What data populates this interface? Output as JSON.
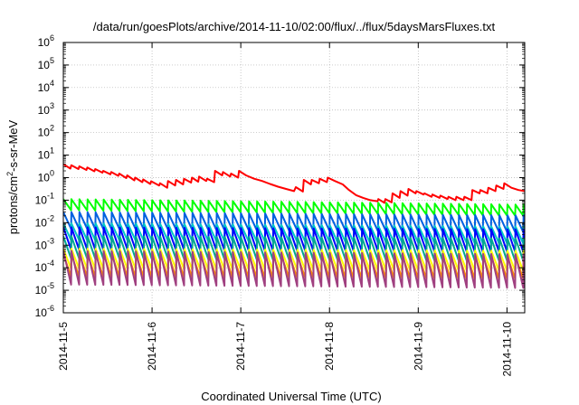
{
  "chart_data": {
    "type": "line",
    "title": "/data/run/goesPlots/archive/2014-11-10/02:00/flux/../flux/5daysMarsFluxes.txt",
    "xlabel": "Coordinated Universal Time (UTC)",
    "ylabel_base": "protons/cm",
    "ylabel_exp": "2",
    "ylabel_rest": "-s-sr-MeV",
    "yscale": "log",
    "ylim_exp": [
      -6,
      6
    ],
    "ytick_exps": [
      "-6",
      "-5",
      "-4",
      "-3",
      "-2",
      "-1",
      "0",
      "1",
      "2",
      "3",
      "4",
      "5",
      "6"
    ],
    "ytick_base": "10",
    "xlim_days": [
      0,
      5.2
    ],
    "xticks": [
      {
        "label": "2014-11-5",
        "day": 0
      },
      {
        "label": "2014-11-6",
        "day": 1
      },
      {
        "label": "2014-11-7",
        "day": 2
      },
      {
        "label": "2014-11-8",
        "day": 3
      },
      {
        "label": "2014-11-9",
        "day": 4
      },
      {
        "label": "2014-11-10",
        "day": 5
      }
    ],
    "grid": true,
    "series": [
      {
        "color": "#ff0000",
        "values": [
          [
            0.0,
            0.6
          ],
          [
            0.08,
            0.4
          ],
          [
            0.09,
            0.55
          ],
          [
            0.17,
            0.38
          ],
          [
            0.18,
            0.5
          ],
          [
            0.26,
            0.34
          ],
          [
            0.27,
            0.45
          ],
          [
            0.35,
            0.28
          ],
          [
            0.36,
            0.38
          ],
          [
            0.44,
            0.22
          ],
          [
            0.45,
            0.3
          ],
          [
            0.53,
            0.15
          ],
          [
            0.54,
            0.25
          ],
          [
            0.62,
            0.08
          ],
          [
            0.63,
            0.18
          ],
          [
            0.71,
            -0.02
          ],
          [
            0.72,
            0.1
          ],
          [
            0.8,
            -0.12
          ],
          [
            0.81,
            0.0
          ],
          [
            0.89,
            -0.2
          ],
          [
            0.9,
            -0.08
          ],
          [
            0.98,
            -0.28
          ],
          [
            0.99,
            -0.16
          ],
          [
            1.08,
            -0.35
          ],
          [
            1.09,
            -0.25
          ],
          [
            1.17,
            -0.45
          ],
          [
            1.18,
            -0.15
          ],
          [
            1.26,
            -0.35
          ],
          [
            1.27,
            -0.1
          ],
          [
            1.35,
            -0.3
          ],
          [
            1.36,
            -0.05
          ],
          [
            1.44,
            -0.22
          ],
          [
            1.45,
            0.0
          ],
          [
            1.52,
            -0.18
          ],
          [
            1.53,
            0.05
          ],
          [
            1.61,
            -0.15
          ],
          [
            1.62,
            -0.05
          ],
          [
            1.7,
            -0.2
          ],
          [
            1.71,
            0.3
          ],
          [
            1.79,
            0.1
          ],
          [
            1.8,
            0.25
          ],
          [
            1.88,
            0.05
          ],
          [
            1.89,
            0.18
          ],
          [
            1.97,
            0.0
          ],
          [
            1.98,
            0.3
          ],
          [
            2.06,
            0.1
          ],
          [
            2.15,
            -0.05
          ],
          [
            2.24,
            -0.15
          ],
          [
            2.33,
            -0.28
          ],
          [
            2.42,
            -0.4
          ],
          [
            2.51,
            -0.5
          ],
          [
            2.6,
            -0.6
          ],
          [
            2.62,
            -0.42
          ],
          [
            2.7,
            -0.62
          ],
          [
            2.71,
            -0.1
          ],
          [
            2.79,
            -0.3
          ],
          [
            2.8,
            -0.1
          ],
          [
            2.88,
            -0.25
          ],
          [
            2.89,
            -0.05
          ],
          [
            2.97,
            -0.2
          ],
          [
            2.98,
            0.0
          ],
          [
            3.06,
            -0.15
          ],
          [
            3.15,
            -0.3
          ],
          [
            3.22,
            -0.55
          ],
          [
            3.3,
            -0.78
          ],
          [
            3.38,
            -0.9
          ],
          [
            3.46,
            -1.0
          ],
          [
            3.54,
            -1.05
          ],
          [
            3.55,
            -0.95
          ],
          [
            3.62,
            -1.12
          ],
          [
            3.63,
            -0.95
          ],
          [
            3.7,
            -1.1
          ],
          [
            3.71,
            -0.7
          ],
          [
            3.79,
            -0.9
          ],
          [
            3.8,
            -0.6
          ],
          [
            3.88,
            -0.8
          ],
          [
            3.89,
            -0.5
          ],
          [
            3.97,
            -0.7
          ],
          [
            3.98,
            -0.6
          ],
          [
            4.06,
            -0.75
          ],
          [
            4.07,
            -0.7
          ],
          [
            4.15,
            -0.85
          ],
          [
            4.16,
            -0.75
          ],
          [
            4.24,
            -0.9
          ],
          [
            4.25,
            -0.8
          ],
          [
            4.33,
            -0.95
          ],
          [
            4.34,
            -0.85
          ],
          [
            4.42,
            -1.0
          ],
          [
            4.43,
            -0.85
          ],
          [
            4.51,
            -1.0
          ],
          [
            4.52,
            -0.85
          ],
          [
            4.6,
            -1.0
          ],
          [
            4.61,
            -0.55
          ],
          [
            4.69,
            -0.7
          ],
          [
            4.7,
            -0.55
          ],
          [
            4.78,
            -0.7
          ],
          [
            4.79,
            -0.45
          ],
          [
            4.87,
            -0.6
          ],
          [
            4.88,
            -0.35
          ],
          [
            4.96,
            -0.5
          ],
          [
            4.97,
            -0.25
          ],
          [
            5.05,
            -0.45
          ],
          [
            5.13,
            -0.55
          ],
          [
            5.2,
            -0.6
          ]
        ]
      },
      {
        "color": "#00ff00",
        "base": -1.2,
        "amp": 0.5,
        "drift": -0.25
      },
      {
        "color": "#0060e0",
        "base": -1.9,
        "amp": 0.75,
        "drift": -0.15
      },
      {
        "color": "#00c8c8",
        "base": -2.4,
        "amp": 0.75,
        "drift": -0.15
      },
      {
        "color": "#0000ff",
        "base": -2.7,
        "amp": 1.0,
        "drift": -0.1
      },
      {
        "color": "#00a890",
        "base": -3.1,
        "amp": 1.0,
        "drift": -0.1
      },
      {
        "color": "#ffff00",
        "base": -3.6,
        "amp": 0.9,
        "drift": -0.1
      },
      {
        "color": "#ff8c00",
        "base": -3.9,
        "amp": 1.0,
        "drift": -0.1
      },
      {
        "color": "#a04080",
        "base": -4.0,
        "amp": 1.5,
        "drift": -0.15
      }
    ]
  }
}
